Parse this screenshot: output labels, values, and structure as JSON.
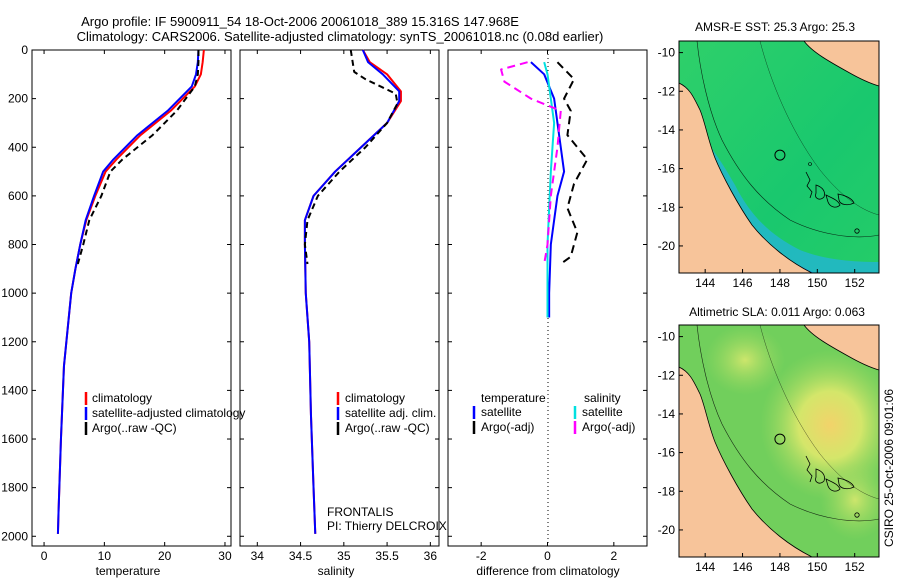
{
  "title": {
    "line1": "Argo profile: IF 5900911_54 18-Oct-2006 20061018_389 15.316S 147.968E",
    "line2": "Climatology: CARS2006. Satellite-adjusted climatology: synTS_20061018.nc (0.08d earlier)"
  },
  "footer": {
    "credit": "CSIRO 25-Oct-2006 09:01:06",
    "project": "FRONTALIS",
    "pi": "PI: Thierry DELCROIX"
  },
  "colors": {
    "climatology": "#ff0000",
    "satellite": "#0000ff",
    "argo": "#000000",
    "salinity_satellite": "#00e0e0",
    "salinity_argo": "#ff00ff",
    "land": "#f7c49a",
    "coast": "#000000"
  },
  "chart_data": [
    {
      "id": "temperature",
      "type": "line",
      "xlabel": "temperature",
      "ylabel": "",
      "xlim": [
        -2,
        31
      ],
      "ylim": [
        2040,
        0
      ],
      "xticks": [
        0,
        10,
        20,
        30
      ],
      "yticks": [
        0,
        200,
        400,
        600,
        800,
        1000,
        1200,
        1400,
        1600,
        1800,
        2000
      ],
      "legend": [
        "climatology",
        "satellite-adjusted climatology",
        "Argo(..raw -QC)"
      ],
      "series": [
        {
          "name": "climatology",
          "color": "#ff0000",
          "dash": "",
          "points": [
            [
              26.5,
              0
            ],
            [
              26.3,
              50
            ],
            [
              26.0,
              100
            ],
            [
              25.0,
              150
            ],
            [
              21.0,
              250
            ],
            [
              16.0,
              350
            ],
            [
              12.0,
              450
            ],
            [
              10.2,
              500
            ],
            [
              8.5,
              600
            ],
            [
              7.0,
              700
            ],
            [
              6.0,
              800
            ],
            [
              5.2,
              900
            ],
            [
              4.5,
              1000
            ],
            [
              3.3,
              1300
            ],
            [
              2.8,
              1600
            ],
            [
              2.4,
              1900
            ],
            [
              2.3,
              1990
            ]
          ]
        },
        {
          "name": "satellite-adjusted climatology",
          "color": "#0000ff",
          "dash": "",
          "points": [
            [
              25.6,
              0
            ],
            [
              25.5,
              50
            ],
            [
              25.2,
              100
            ],
            [
              24.5,
              150
            ],
            [
              20.5,
              250
            ],
            [
              15.5,
              350
            ],
            [
              11.5,
              450
            ],
            [
              9.8,
              500
            ],
            [
              8.3,
              600
            ],
            [
              6.9,
              700
            ],
            [
              6.0,
              800
            ],
            [
              5.2,
              900
            ],
            [
              4.5,
              1000
            ],
            [
              3.3,
              1300
            ],
            [
              2.8,
              1600
            ],
            [
              2.4,
              1900
            ],
            [
              2.3,
              1990
            ]
          ]
        },
        {
          "name": "Argo(..raw -QC)",
          "color": "#000000",
          "dash": "6,4",
          "points": [
            [
              25.6,
              0
            ],
            [
              25.6,
              50
            ],
            [
              25.5,
              100
            ],
            [
              25.0,
              150
            ],
            [
              22.0,
              250
            ],
            [
              18.0,
              350
            ],
            [
              13.0,
              450
            ],
            [
              11.0,
              500
            ],
            [
              9.5,
              600
            ],
            [
              7.5,
              700
            ],
            [
              6.5,
              800
            ],
            [
              5.6,
              880
            ]
          ]
        }
      ]
    },
    {
      "id": "salinity",
      "type": "line",
      "xlabel": "salinity",
      "ylabel": "",
      "xlim": [
        33.8,
        36.1
      ],
      "ylim": [
        2040,
        0
      ],
      "xticks": [
        34,
        34.5,
        35,
        35.5,
        36
      ],
      "yticks": [
        0,
        200,
        400,
        600,
        800,
        1000,
        1200,
        1400,
        1600,
        1800,
        2000
      ],
      "legend": [
        "climatology",
        "satellite adj. clim.",
        "Argo(..raw -QC)"
      ],
      "series": [
        {
          "name": "climatology",
          "color": "#ff0000",
          "dash": "",
          "points": [
            [
              35.22,
              0
            ],
            [
              35.3,
              50
            ],
            [
              35.5,
              100
            ],
            [
              35.66,
              170
            ],
            [
              35.66,
              210
            ],
            [
              35.5,
              300
            ],
            [
              35.2,
              400
            ],
            [
              34.9,
              500
            ],
            [
              34.65,
              600
            ],
            [
              34.55,
              700
            ],
            [
              34.55,
              800
            ],
            [
              34.56,
              1000
            ],
            [
              34.6,
              1200
            ],
            [
              34.62,
              1500
            ],
            [
              34.65,
              1800
            ],
            [
              34.67,
              1990
            ]
          ]
        },
        {
          "name": "satellite adj. clim.",
          "color": "#0000ff",
          "dash": "",
          "points": [
            [
              35.22,
              0
            ],
            [
              35.28,
              50
            ],
            [
              35.45,
              100
            ],
            [
              35.64,
              170
            ],
            [
              35.64,
              210
            ],
            [
              35.5,
              300
            ],
            [
              35.2,
              400
            ],
            [
              34.9,
              500
            ],
            [
              34.65,
              600
            ],
            [
              34.55,
              700
            ],
            [
              34.55,
              800
            ],
            [
              34.56,
              1000
            ],
            [
              34.6,
              1200
            ],
            [
              34.62,
              1500
            ],
            [
              34.65,
              1800
            ],
            [
              34.67,
              1990
            ]
          ]
        },
        {
          "name": "Argo(..raw -QC)",
          "color": "#000000",
          "dash": "6,4",
          "points": [
            [
              35.08,
              0
            ],
            [
              35.12,
              90
            ],
            [
              35.25,
              120
            ],
            [
              35.6,
              180
            ],
            [
              35.62,
              220
            ],
            [
              35.5,
              300
            ],
            [
              35.25,
              400
            ],
            [
              34.95,
              500
            ],
            [
              34.7,
              600
            ],
            [
              34.58,
              700
            ],
            [
              34.55,
              800
            ],
            [
              34.58,
              880
            ]
          ]
        }
      ]
    },
    {
      "id": "difference",
      "type": "line",
      "xlabel": "difference from climatology",
      "ylabel": "",
      "xlim": [
        -3,
        3
      ],
      "ylim": [
        2040,
        0
      ],
      "xticks": [
        -2,
        0,
        2
      ],
      "yticks": [
        0,
        200,
        400,
        600,
        800,
        1000,
        1200,
        1400,
        1600,
        1800,
        2000
      ],
      "legend_headers": [
        "temperature",
        "salinity"
      ],
      "legend": [
        "satellite",
        "Argo(-adj)",
        "satellite",
        "Argo(-adj)"
      ],
      "series": [
        {
          "name": "temperature satellite",
          "color": "#0000ff",
          "dash": "",
          "points": [
            [
              -0.5,
              50
            ],
            [
              -0.1,
              100
            ],
            [
              0.2,
              200
            ],
            [
              0.3,
              300
            ],
            [
              0.4,
              400
            ],
            [
              0.5,
              500
            ],
            [
              0.3,
              600
            ],
            [
              0.1,
              800
            ],
            [
              0.05,
              1000
            ],
            [
              0.05,
              1100
            ]
          ]
        },
        {
          "name": "temperature Argo(-adj)",
          "color": "#000000",
          "dash": "8,5",
          "points": [
            [
              0.3,
              50
            ],
            [
              0.8,
              120
            ],
            [
              0.5,
              200
            ],
            [
              0.7,
              250
            ],
            [
              0.6,
              350
            ],
            [
              1.2,
              450
            ],
            [
              0.8,
              550
            ],
            [
              0.6,
              650
            ],
            [
              0.9,
              750
            ],
            [
              0.7,
              850
            ],
            [
              0.4,
              880
            ]
          ]
        },
        {
          "name": "salinity satellite",
          "color": "#00e0e0",
          "dash": "",
          "points": [
            [
              -0.1,
              50
            ],
            [
              0.0,
              100
            ],
            [
              0.1,
              200
            ],
            [
              0.2,
              300
            ],
            [
              0.1,
              500
            ],
            [
              0.0,
              800
            ],
            [
              0.0,
              1000
            ],
            [
              0.0,
              1100
            ]
          ]
        },
        {
          "name": "salinity Argo(-adj)",
          "color": "#ff00ff",
          "dash": "8,5",
          "points": [
            [
              -0.6,
              50
            ],
            [
              -1.4,
              80
            ],
            [
              -1.3,
              130
            ],
            [
              -0.5,
              200
            ],
            [
              0.4,
              250
            ],
            [
              0.3,
              400
            ],
            [
              0.1,
              600
            ],
            [
              0.0,
              800
            ],
            [
              -0.1,
              880
            ]
          ]
        }
      ]
    },
    {
      "id": "sst-map",
      "type": "heatmap",
      "title": "AMSR-E SST: 25.3   Argo: 25.3",
      "xlim": [
        142.6,
        153.3
      ],
      "ylim": [
        -21.4,
        -9.4
      ],
      "xticks": [
        144,
        146,
        148,
        150,
        152
      ],
      "yticks": [
        -10,
        -12,
        -14,
        -16,
        -18,
        -20
      ],
      "marker": [
        148.0,
        -15.3
      ]
    },
    {
      "id": "sla-map",
      "type": "heatmap",
      "title": "Altimetric SLA: 0.011   Argo: 0.063",
      "xlim": [
        142.6,
        153.3
      ],
      "ylim": [
        -21.4,
        -9.4
      ],
      "xticks": [
        144,
        146,
        148,
        150,
        152
      ],
      "yticks": [
        -10,
        -12,
        -14,
        -16,
        -18,
        -20
      ],
      "marker": [
        148.0,
        -15.3
      ]
    }
  ]
}
